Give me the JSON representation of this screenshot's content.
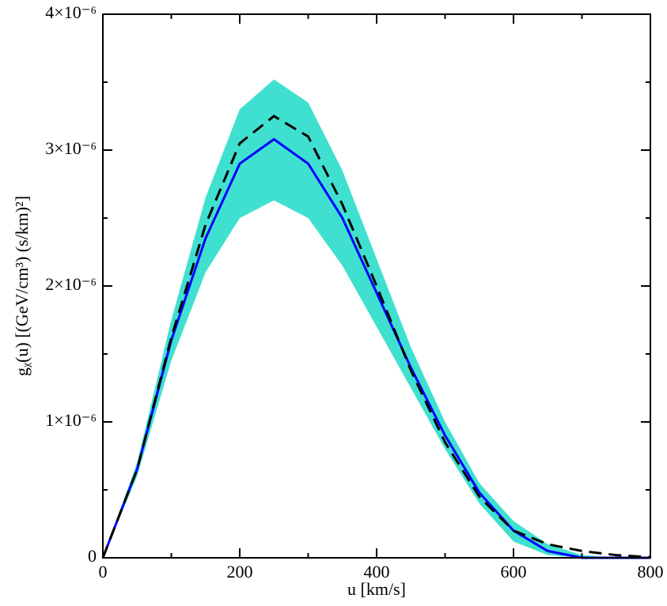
{
  "chart_data": {
    "type": "line",
    "xlabel": "u [km/s]",
    "ylabel": "gᵪ(u) [(GeV/cm³) (s/km)²]",
    "x": [
      0,
      50,
      100,
      150,
      200,
      250,
      300,
      350,
      400,
      450,
      500,
      550,
      600,
      650,
      700,
      750,
      800
    ],
    "band": {
      "color": "#40e0d0",
      "upper": [
        0,
        7e-07,
        1.75e-06,
        2.65e-06,
        3.3e-06,
        3.52e-06,
        3.35e-06,
        2.85e-06,
        2.2e-06,
        1.55e-06,
        1e-06,
        5.5e-07,
        2.7e-07,
        1e-07,
        2e-08,
        0,
        0
      ],
      "lower": [
        0,
        6e-07,
        1.45e-06,
        2.1e-06,
        2.5e-06,
        2.63e-06,
        2.5e-06,
        2.15e-06,
        1.7e-06,
        1.25e-06,
        8e-07,
        4e-07,
        1.2e-07,
        2e-08,
        0,
        0,
        0
      ]
    },
    "series": [
      {
        "color": "#0000ff",
        "dash": false,
        "values": [
          0,
          6.5e-07,
          1.6e-06,
          2.35e-06,
          2.9e-06,
          3.08e-06,
          2.9e-06,
          2.5e-06,
          1.95e-06,
          1.4e-06,
          9e-07,
          4.8e-07,
          2e-07,
          5e-08,
          0,
          0,
          0
        ]
      },
      {
        "color": "#000000",
        "dash": true,
        "values": [
          0,
          6.5e-07,
          1.62e-06,
          2.45e-06,
          3.05e-06,
          3.25e-06,
          3.1e-06,
          2.6e-06,
          2e-06,
          1.38e-06,
          8.5e-07,
          4.5e-07,
          2e-07,
          1e-07,
          5e-08,
          2e-08,
          5e-09
        ]
      }
    ],
    "xlim": [
      0,
      800
    ],
    "xticks": [
      0,
      200,
      400,
      600,
      800
    ],
    "xticks_minor": [
      100,
      300,
      500,
      700
    ],
    "ylim": [
      0,
      4e-06
    ],
    "yticks": [
      0,
      {
        "value": 1e-06,
        "label": "1×10⁻⁶"
      },
      {
        "value": 2e-06,
        "label": "2×10⁻⁶"
      },
      {
        "value": 3e-06,
        "label": "3×10⁻⁶"
      },
      {
        "value": 4e-06,
        "label": "4×10⁻⁶"
      }
    ],
    "yticks_minor": [
      5e-07,
      1.5e-06,
      2.5e-06,
      3.5e-06
    ]
  }
}
